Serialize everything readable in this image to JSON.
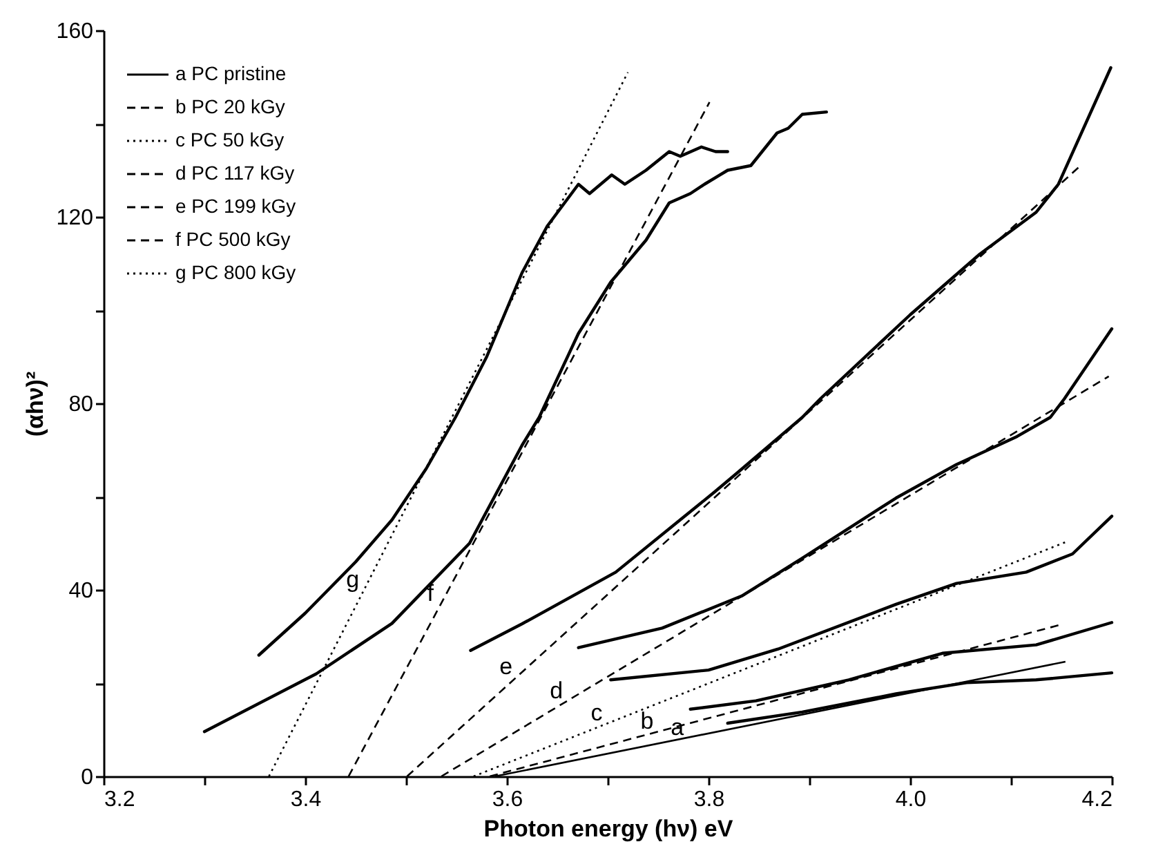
{
  "chart_data": {
    "type": "line",
    "xlabel": "Photon energy (hν) eV",
    "ylabel": "(αhν)²",
    "xlim": [
      3.2,
      4.2
    ],
    "ylim": [
      0,
      160
    ],
    "xticks": [
      3.2,
      {
        "value": 3.3,
        "label": null
      },
      3.4,
      {
        "value": 3.5,
        "label": null
      },
      3.6,
      {
        "value": 3.7,
        "label": null
      },
      3.8,
      {
        "value": 3.9,
        "label": null
      },
      {
        "value": 4.0,
        "label": "4.0"
      },
      {
        "value": 4.1,
        "label": null
      },
      4.2
    ],
    "yticks": [
      0,
      {
        "value": 20,
        "label": null
      },
      40,
      {
        "value": 60,
        "label": null
      },
      80,
      {
        "value": 100,
        "label": null
      },
      120,
      {
        "value": 140,
        "label": null
      },
      160
    ],
    "legend": "top left",
    "series": [
      {
        "color": "#000000",
        "line_style": "solid",
        "x": [
          3.354,
          3.4,
          3.45,
          3.486,
          3.52,
          3.549,
          3.58,
          3.615,
          3.64,
          3.671,
          3.682,
          3.704,
          3.717,
          3.738,
          3.761,
          3.772,
          3.793,
          3.807,
          3.819
        ],
        "values": [
          26,
          35,
          46,
          55,
          66,
          77,
          90,
          108,
          118,
          127,
          125,
          129,
          127,
          130,
          134,
          133,
          135,
          134,
          134
        ]
      },
      {
        "color": "#000000",
        "line_style": "solid",
        "x": [
          3.3,
          3.411,
          3.486,
          3.563,
          3.615,
          3.632,
          3.671,
          3.703,
          3.738,
          3.761,
          3.782,
          3.796,
          3.819,
          3.842,
          3.868,
          3.879,
          3.893,
          3.917
        ],
        "values": [
          9.6,
          22,
          32.8,
          50,
          71,
          77,
          95,
          106,
          115,
          123,
          125,
          127,
          130,
          131,
          138,
          139,
          142,
          142.5
        ]
      },
      {
        "color": "#000000",
        "line_style": "solid",
        "x": [
          3.564,
          3.615,
          3.708,
          3.806,
          3.828,
          3.893,
          3.911,
          4.0,
          4.069,
          4.125,
          4.147,
          4.199
        ],
        "values": [
          27,
          32.7,
          43.8,
          61,
          65,
          77,
          81,
          99,
          112,
          121,
          127,
          152
        ]
      },
      {
        "color": "#000000",
        "line_style": "solid",
        "x": [
          3.671,
          3.754,
          3.833,
          3.893,
          3.986,
          4.046,
          4.106,
          4.139,
          4.153,
          4.2
        ],
        "values": [
          27.6,
          31.8,
          38.7,
          46.8,
          59.7,
          66.9,
          72.9,
          77,
          81,
          96
        ]
      },
      {
        "color": "#000000",
        "line_style": "solid",
        "x": [
          3.703,
          3.8,
          3.869,
          3.986,
          4.046,
          4.115,
          4.161,
          4.2
        ],
        "values": [
          20.7,
          22.8,
          27.3,
          36.9,
          41.4,
          43.8,
          47.7,
          55.8
        ]
      },
      {
        "color": "#000000",
        "line_style": "solid",
        "x": [
          3.782,
          3.847,
          3.939,
          4.032,
          4.125,
          4.2
        ],
        "values": [
          14.4,
          16.2,
          20.7,
          26.4,
          28.2,
          33
        ]
      },
      {
        "color": "#000000",
        "line_style": "solid",
        "x": [
          3.819,
          3.893,
          3.986,
          4.056,
          4.125,
          4.2
        ],
        "values": [
          11.4,
          13.8,
          17.7,
          20.1,
          20.7,
          22.2
        ]
      },
      {
        "name": "a PC pristine",
        "color": "#000000",
        "line_style": "solid",
        "x": [
          3.588,
          4.154
        ],
        "values": [
          0,
          24.6
        ]
      },
      {
        "name": "b PC 20 kGy",
        "color": "#000000",
        "line_style": "dashed",
        "x": [
          3.583,
          4.147
        ],
        "values": [
          0,
          32.4
        ]
      },
      {
        "name": "c PC 50 kGy",
        "color": "#000000",
        "line_style": "dotted",
        "x": [
          3.567,
          4.156
        ],
        "values": [
          0,
          50.4
        ]
      },
      {
        "name": "d PC 117 kGy",
        "color": "#000000",
        "line_style": "dashed",
        "x": [
          3.535,
          4.197
        ],
        "values": [
          0,
          85.8
        ]
      },
      {
        "name": "e PC 199 kGy",
        "color": "#000000",
        "line_style": "dashed",
        "x": [
          3.501,
          4.168
        ],
        "values": [
          0,
          130.8
        ]
      },
      {
        "name": "f PC  500 kGy",
        "color": "#000000",
        "line_style": "dashed",
        "x": [
          3.443,
          3.801
        ],
        "values": [
          0,
          144.6
        ]
      },
      {
        "name": "g PC 800 kGy",
        "color": "#000000",
        "line_style": "dotted",
        "x": [
          3.364,
          3.72
        ],
        "values": [
          0,
          151
        ]
      }
    ],
    "annotations": [
      {
        "text": "g",
        "x": 3.458,
        "y": 40
      },
      {
        "text": "f",
        "x": 3.535,
        "y": 37
      },
      {
        "text": "e",
        "x": 3.61,
        "y": 21.4
      },
      {
        "text": "d",
        "x": 3.66,
        "y": 16.2
      },
      {
        "text": "c",
        "x": 3.7,
        "y": 11.4
      },
      {
        "text": "b",
        "x": 3.75,
        "y": 9.6
      },
      {
        "text": "a",
        "x": 3.78,
        "y": 8.3
      }
    ]
  }
}
